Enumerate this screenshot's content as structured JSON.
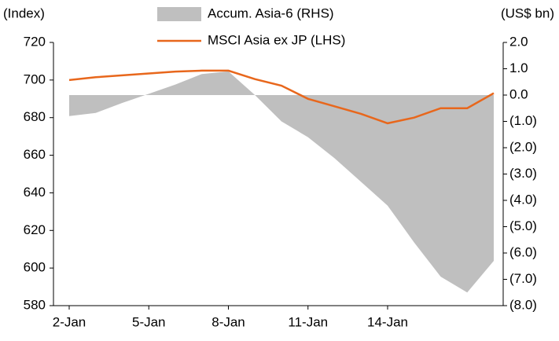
{
  "chart_data": {
    "type": "line-area",
    "y_label": "(Index)",
    "y2_label": "(US$ bn)",
    "categories": [
      "2-Jan",
      null,
      null,
      "5-Jan",
      null,
      null,
      "8-Jan",
      null,
      null,
      "11-Jan",
      null,
      null,
      "14-Jan",
      null,
      null,
      null,
      null
    ],
    "series": [
      {
        "name": "Accum. Asia-6 (RHS)",
        "type": "area",
        "axis": "y2",
        "color": "#bfbfbf",
        "values": [
          -0.8,
          -0.68,
          -0.3,
          0.05,
          0.4,
          0.8,
          0.9,
          0.0,
          -1.0,
          -1.6,
          -2.4,
          -3.3,
          -4.2,
          -5.6,
          -6.9,
          -7.5,
          -6.3
        ]
      },
      {
        "name": "MSCI Asia ex JP (LHS)",
        "type": "line",
        "color": "#e8671c",
        "values": [
          700,
          701.5,
          702.5,
          703.5,
          704.5,
          705,
          705,
          700.5,
          697,
          690,
          686,
          682,
          677,
          680,
          685,
          685,
          693
        ]
      }
    ],
    "ylim": [
      580,
      720
    ],
    "yticks": [
      580,
      600,
      620,
      640,
      660,
      680,
      700,
      720
    ],
    "y2lim": [
      -8,
      2
    ],
    "y2ticks": [
      {
        "value": -8,
        "label": "(8.0)"
      },
      {
        "value": -7,
        "label": "(7.0)"
      },
      {
        "value": -6,
        "label": "(6.0)"
      },
      {
        "value": -5,
        "label": "(5.0)"
      },
      {
        "value": -4,
        "label": "(4.0)"
      },
      {
        "value": -3,
        "label": "(3.0)"
      },
      {
        "value": -2,
        "label": "(2.0)"
      },
      {
        "value": -1,
        "label": "(1.0)"
      },
      {
        "value": 0,
        "label": "0.0"
      },
      {
        "value": 1,
        "label": "1.0"
      },
      {
        "value": 2,
        "label": "2.0"
      }
    ]
  }
}
